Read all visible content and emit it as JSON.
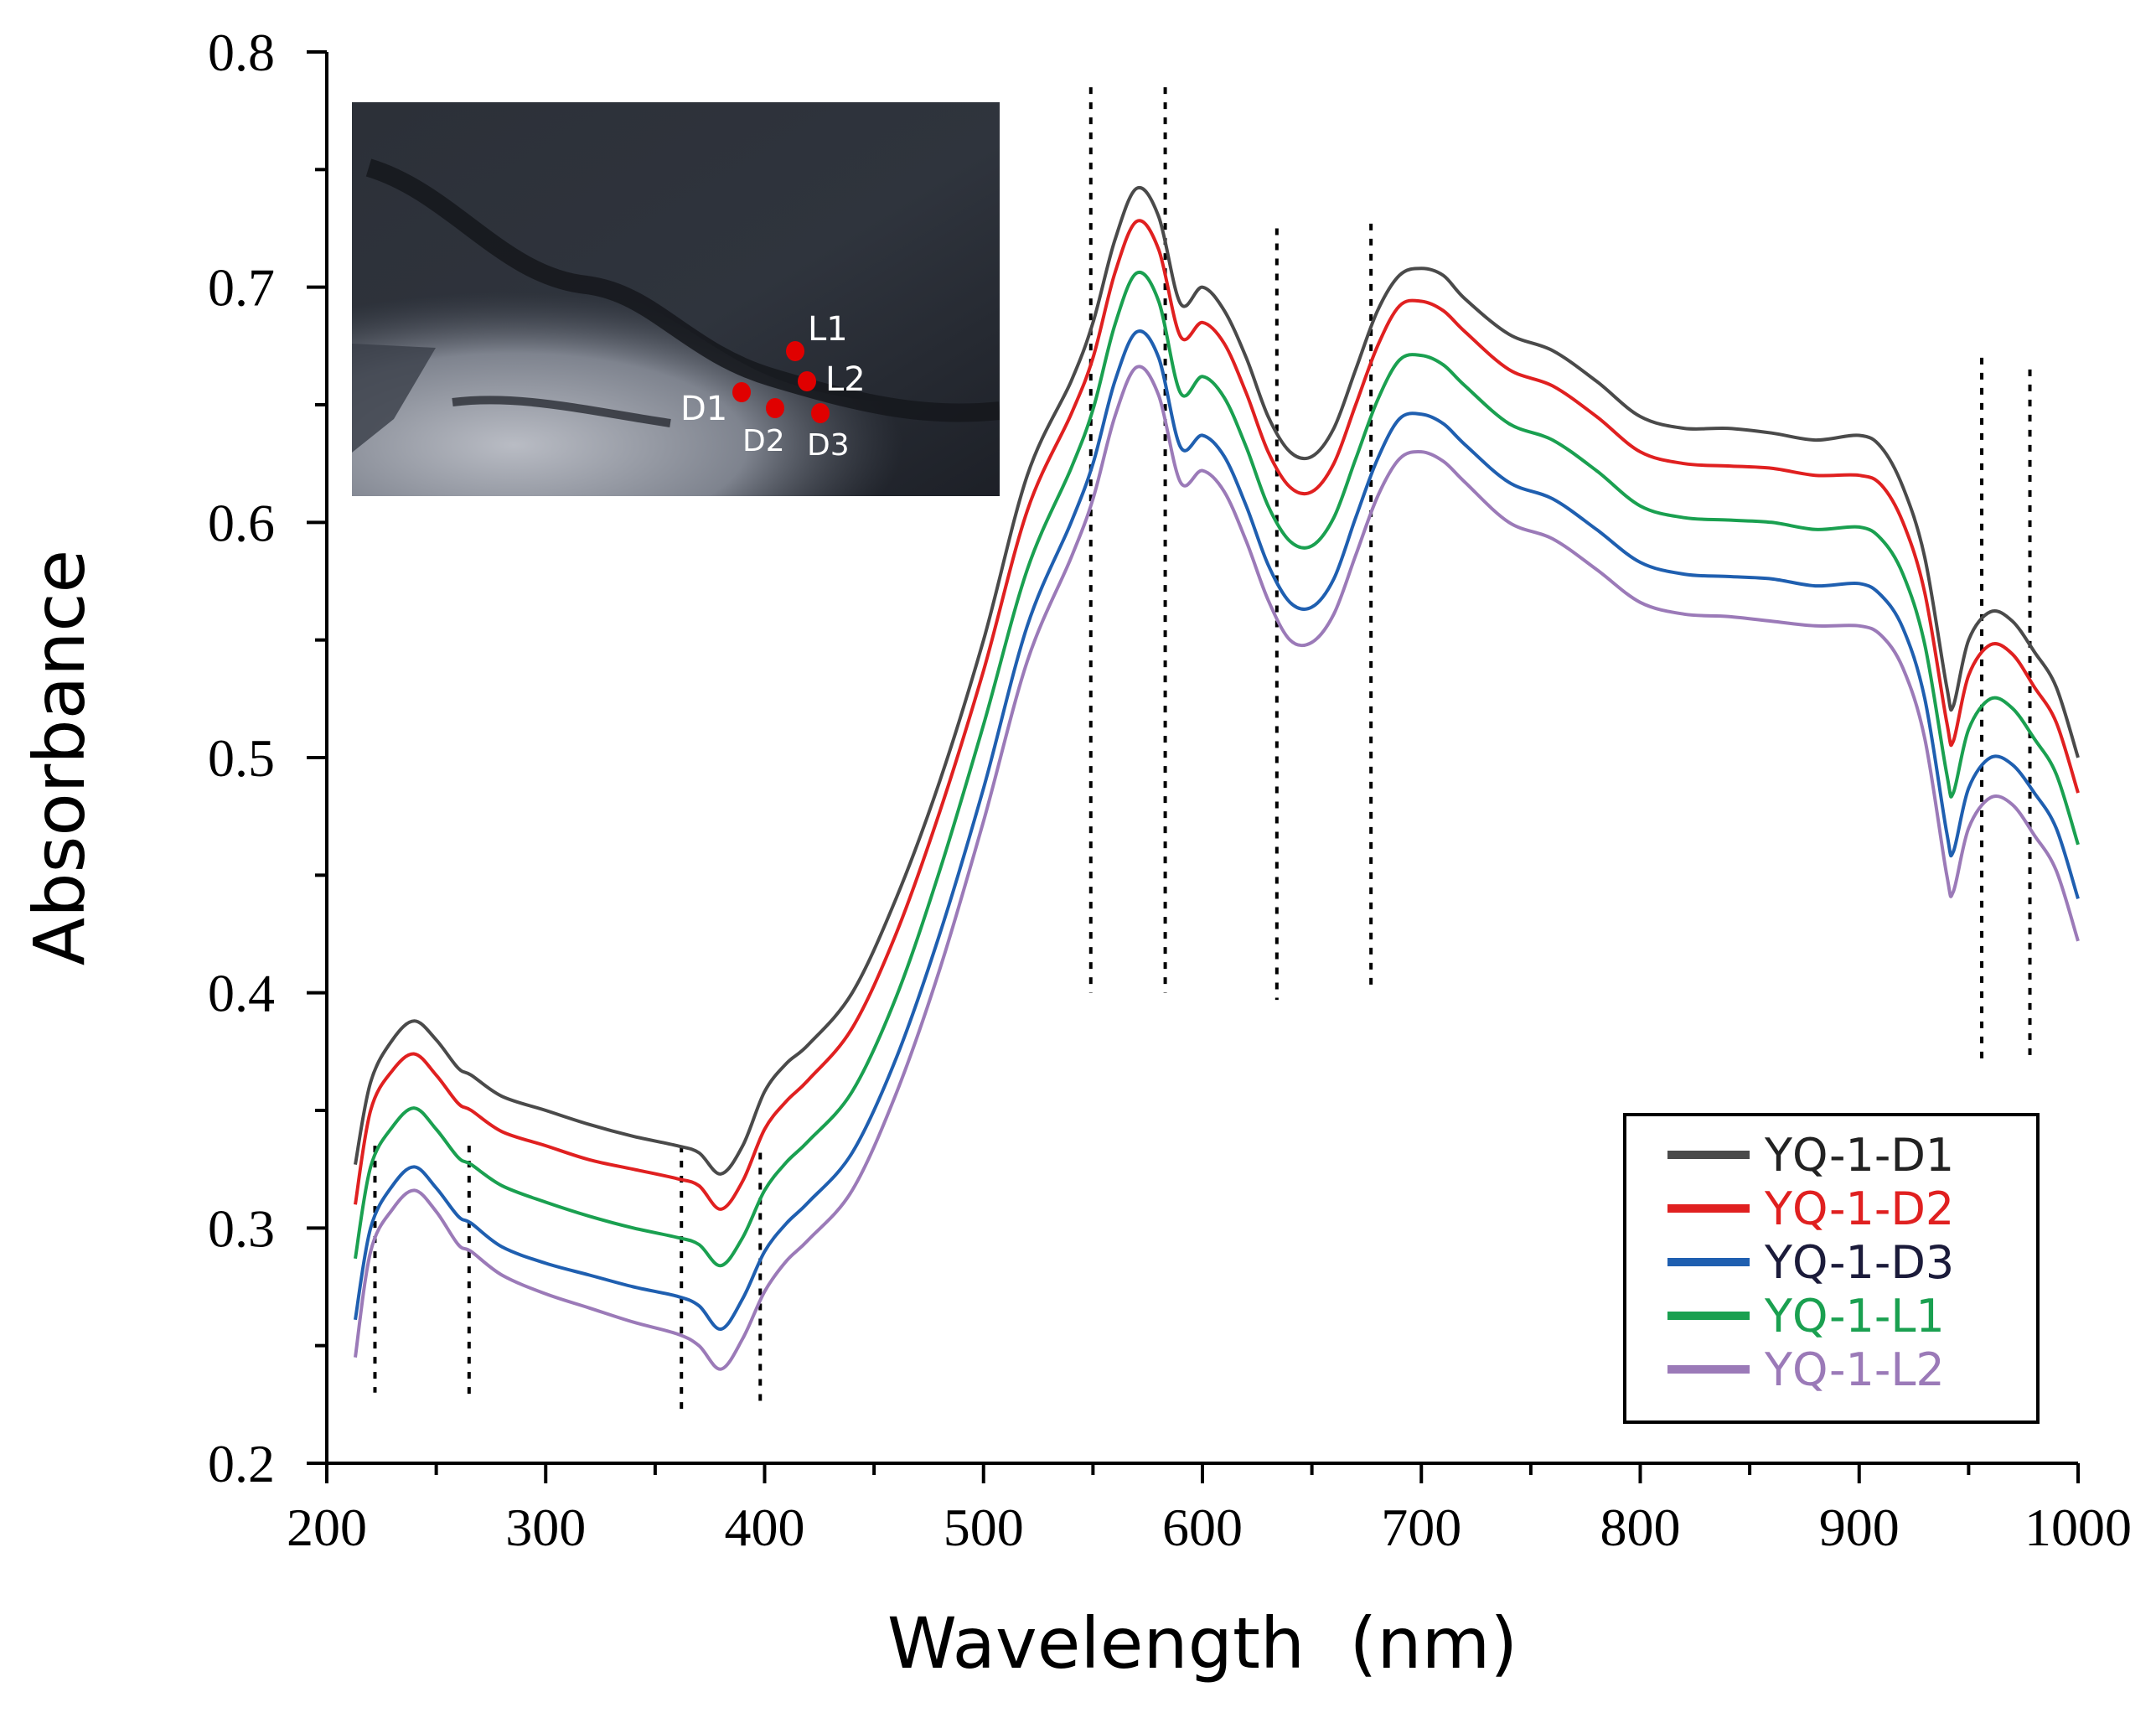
{
  "chart_data": {
    "type": "line",
    "title": "",
    "xlabel": "Wavelength  (nm)",
    "ylabel": "Absorbance",
    "xlim": [
      200,
      1000
    ],
    "ylim": [
      0.2,
      0.8
    ],
    "xticks": [
      "200",
      "300",
      "400",
      "500",
      "600",
      "700",
      "800",
      "900",
      "1000"
    ],
    "yticks": [
      "0.2",
      "0.3",
      "0.4",
      "0.5",
      "0.6",
      "0.7",
      "0.8"
    ],
    "grid": false,
    "legend_position": "bottom-right",
    "x": [
      213,
      220,
      230,
      240,
      250,
      260,
      266,
      280,
      300,
      320,
      340,
      360,
      370,
      380,
      390,
      400,
      410,
      420,
      440,
      460,
      480,
      500,
      520,
      540,
      550,
      560,
      570,
      580,
      590,
      600,
      610,
      620,
      630,
      640,
      650,
      660,
      670,
      680,
      690,
      700,
      710,
      720,
      740,
      760,
      780,
      800,
      820,
      840,
      860,
      880,
      900,
      910,
      920,
      930,
      940,
      943,
      950,
      960,
      970,
      980,
      990,
      1000
    ],
    "series": [
      {
        "name": "YQ-1-D1",
        "color": "#4a4a4a",
        "values": [
          0.327,
          0.362,
          0.38,
          0.388,
          0.38,
          0.368,
          0.365,
          0.356,
          0.35,
          0.344,
          0.339,
          0.335,
          0.332,
          0.323,
          0.335,
          0.358,
          0.37,
          0.378,
          0.4,
          0.44,
          0.49,
          0.55,
          0.62,
          0.66,
          0.685,
          0.72,
          0.742,
          0.73,
          0.693,
          0.7,
          0.69,
          0.67,
          0.645,
          0.63,
          0.628,
          0.64,
          0.665,
          0.69,
          0.705,
          0.708,
          0.705,
          0.695,
          0.68,
          0.673,
          0.66,
          0.645,
          0.64,
          0.64,
          0.638,
          0.635,
          0.637,
          0.632,
          0.615,
          0.585,
          0.53,
          0.522,
          0.55,
          0.562,
          0.558,
          0.545,
          0.53,
          0.5
        ]
      },
      {
        "name": "YQ-1-D2",
        "color": "#e02020",
        "values": [
          0.31,
          0.35,
          0.367,
          0.374,
          0.365,
          0.353,
          0.35,
          0.341,
          0.335,
          0.329,
          0.325,
          0.321,
          0.318,
          0.308,
          0.32,
          0.342,
          0.354,
          0.363,
          0.385,
          0.425,
          0.477,
          0.537,
          0.605,
          0.646,
          0.67,
          0.706,
          0.728,
          0.716,
          0.679,
          0.685,
          0.676,
          0.655,
          0.63,
          0.615,
          0.613,
          0.625,
          0.65,
          0.675,
          0.692,
          0.694,
          0.69,
          0.681,
          0.665,
          0.658,
          0.645,
          0.63,
          0.625,
          0.624,
          0.623,
          0.62,
          0.62,
          0.616,
          0.6,
          0.57,
          0.515,
          0.507,
          0.535,
          0.548,
          0.544,
          0.53,
          0.515,
          0.485
        ]
      },
      {
        "name": "YQ-1-D3",
        "color": "#1f5fb0",
        "values": [
          0.261,
          0.3,
          0.318,
          0.326,
          0.317,
          0.305,
          0.302,
          0.292,
          0.285,
          0.28,
          0.275,
          0.271,
          0.267,
          0.257,
          0.27,
          0.29,
          0.302,
          0.311,
          0.332,
          0.372,
          0.425,
          0.487,
          0.556,
          0.6,
          0.625,
          0.66,
          0.681,
          0.67,
          0.632,
          0.637,
          0.628,
          0.607,
          0.582,
          0.566,
          0.564,
          0.576,
          0.602,
          0.627,
          0.644,
          0.646,
          0.642,
          0.633,
          0.617,
          0.61,
          0.597,
          0.583,
          0.578,
          0.577,
          0.576,
          0.573,
          0.574,
          0.569,
          0.555,
          0.525,
          0.468,
          0.46,
          0.487,
          0.5,
          0.497,
          0.485,
          0.47,
          0.44
        ]
      },
      {
        "name": "YQ-1-L1",
        "color": "#1aa050",
        "values": [
          0.287,
          0.326,
          0.343,
          0.351,
          0.342,
          0.33,
          0.327,
          0.318,
          0.311,
          0.305,
          0.3,
          0.296,
          0.293,
          0.284,
          0.296,
          0.316,
          0.328,
          0.337,
          0.358,
          0.398,
          0.452,
          0.514,
          0.58,
          0.623,
          0.648,
          0.684,
          0.706,
          0.694,
          0.655,
          0.662,
          0.653,
          0.632,
          0.607,
          0.592,
          0.59,
          0.602,
          0.627,
          0.652,
          0.669,
          0.671,
          0.667,
          0.658,
          0.642,
          0.635,
          0.622,
          0.607,
          0.602,
          0.601,
          0.6,
          0.597,
          0.598,
          0.593,
          0.578,
          0.548,
          0.493,
          0.485,
          0.512,
          0.525,
          0.521,
          0.508,
          0.493,
          0.463
        ]
      },
      {
        "name": "YQ-1-L2",
        "color": "#9b7ab8",
        "values": [
          0.245,
          0.29,
          0.308,
          0.316,
          0.307,
          0.293,
          0.29,
          0.28,
          0.272,
          0.266,
          0.26,
          0.255,
          0.25,
          0.24,
          0.253,
          0.273,
          0.286,
          0.295,
          0.316,
          0.357,
          0.41,
          0.473,
          0.541,
          0.585,
          0.61,
          0.645,
          0.666,
          0.654,
          0.617,
          0.622,
          0.613,
          0.592,
          0.567,
          0.55,
          0.549,
          0.561,
          0.586,
          0.611,
          0.627,
          0.63,
          0.626,
          0.617,
          0.6,
          0.593,
          0.58,
          0.566,
          0.561,
          0.56,
          0.558,
          0.556,
          0.556,
          0.552,
          0.538,
          0.508,
          0.45,
          0.443,
          0.47,
          0.483,
          0.48,
          0.467,
          0.452,
          0.422
        ]
      }
    ],
    "reference_lines": [
      {
        "x": 222,
        "y_range": [
          0.23,
          0.335
        ]
      },
      {
        "x": 265,
        "y_range": [
          0.228,
          0.335
        ]
      },
      {
        "x": 362,
        "y_range": [
          0.222,
          0.335
        ]
      },
      {
        "x": 398,
        "y_range": [
          0.225,
          0.332
        ]
      },
      {
        "x": 549,
        "y_range": [
          0.4,
          0.785
        ]
      },
      {
        "x": 583,
        "y_range": [
          0.4,
          0.785
        ]
      },
      {
        "x": 634,
        "y_range": [
          0.397,
          0.725
        ]
      },
      {
        "x": 677,
        "y_range": [
          0.4,
          0.727
        ]
      },
      {
        "x": 956,
        "y_range": [
          0.372,
          0.67
        ]
      },
      {
        "x": 978,
        "y_range": [
          0.372,
          0.665
        ]
      }
    ],
    "inset": {
      "description": "sample photo",
      "point_labels": [
        "L1",
        "L2",
        "D1",
        "D2",
        "D3"
      ],
      "point_color": "#e00000"
    }
  }
}
